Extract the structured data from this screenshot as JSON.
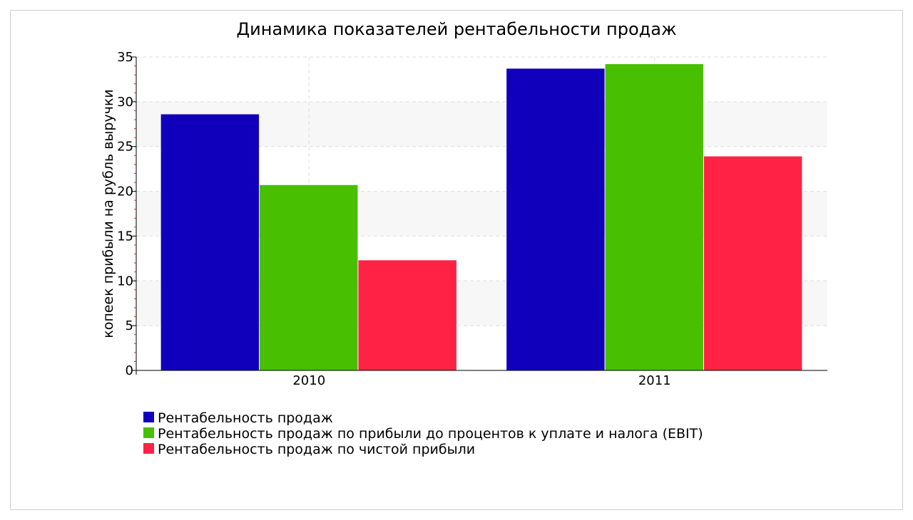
{
  "chart_data": {
    "type": "bar",
    "title": "Динамика показателей рентабельности продаж",
    "xlabel": "",
    "ylabel": "копеек прибыли на рубль выручки",
    "categories": [
      "2010",
      "2011"
    ],
    "ylim": [
      0,
      35
    ],
    "yticks": [
      0,
      5,
      10,
      15,
      20,
      25,
      30,
      35
    ],
    "grid": true,
    "legend_position": "bottom-left",
    "series": [
      {
        "name": "Рентабельность продаж",
        "color": "#1100BB",
        "values": [
          28.6,
          33.7
        ]
      },
      {
        "name": "Рентабельность продаж по прибыли до процентов к уплате и налога (EBIT)",
        "color": "#48BF00",
        "values": [
          20.7,
          34.2
        ]
      },
      {
        "name": "Рентабельность продаж по чистой прибыли",
        "color": "#FF2244",
        "values": [
          12.3,
          23.9
        ]
      }
    ]
  }
}
